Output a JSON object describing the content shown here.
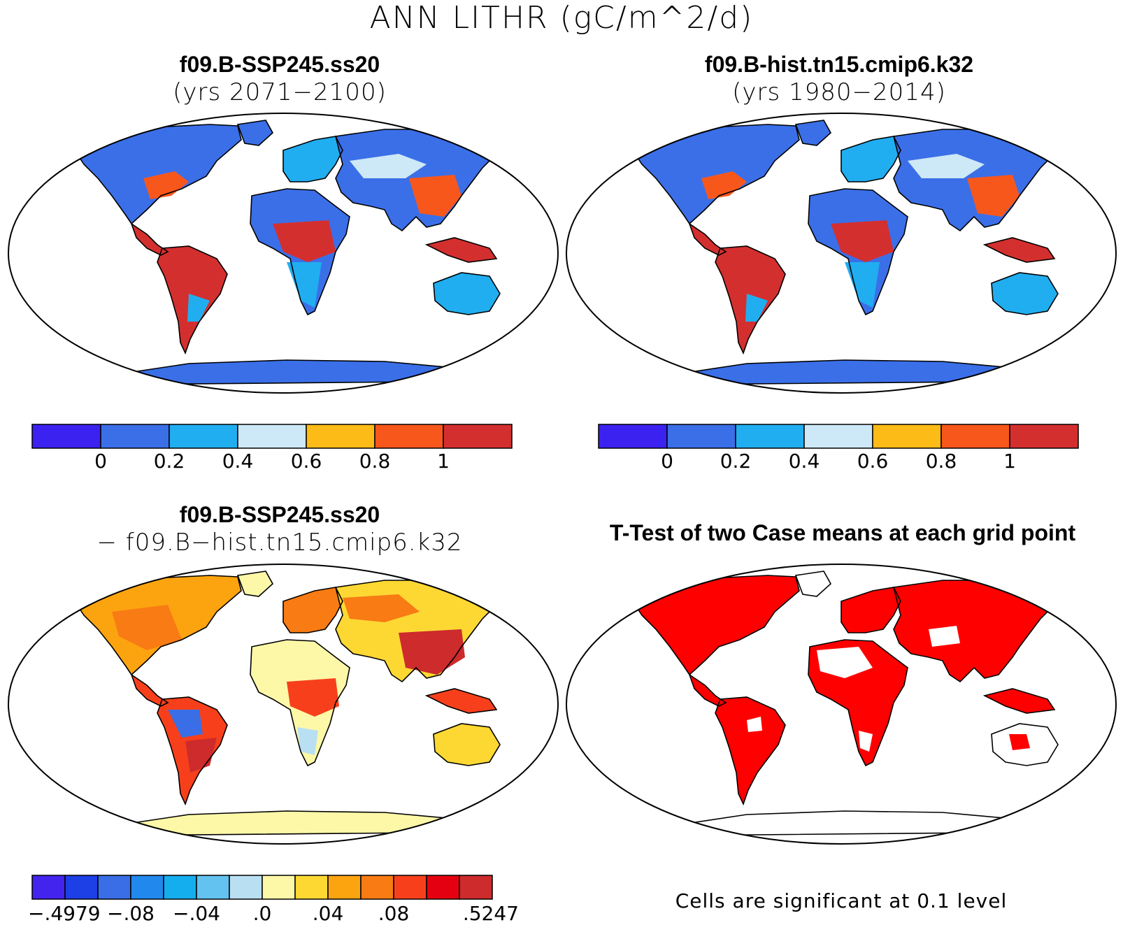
{
  "figure_title": "ANN LITHR (gC/m^2/d)",
  "panels": [
    {
      "title": "f09.B-SSP245.ss20",
      "subtitle": "(yrs 2071−2100)",
      "colorbar": {
        "colors": [
          "#3b22f0",
          "#3b6fe8",
          "#21aef0",
          "#cde8f6",
          "#fdbb17",
          "#f8571c",
          "#d42f2f"
        ],
        "labels": [
          "0",
          "0.2",
          "0.4",
          "0.6",
          "0.8",
          "1"
        ]
      }
    },
    {
      "title": "f09.B-hist.tn15.cmip6.k32",
      "subtitle": "(yrs 1980−2014)",
      "colorbar": {
        "colors": [
          "#3b22f0",
          "#3b6fe8",
          "#21aef0",
          "#cde8f6",
          "#fdbb17",
          "#f8571c",
          "#d42f2f"
        ],
        "labels": [
          "0",
          "0.2",
          "0.4",
          "0.6",
          "0.8",
          "1"
        ]
      }
    },
    {
      "title": "f09.B-SSP245.ss20",
      "subtitle": "− f09.B−hist.tn15.cmip6.k32",
      "colorbar": {
        "colors": [
          "#4224ee",
          "#1d3fe6",
          "#3a6ee6",
          "#2189ee",
          "#14aeee",
          "#63c2f0",
          "#b9dff3",
          "#fdf8a8",
          "#fdd833",
          "#fca40f",
          "#f87b14",
          "#f7401b",
          "#e40010",
          "#cd2b2c"
        ],
        "labels": [
          "−.4979",
          "−.08",
          "−.04",
          ".0",
          ".04",
          ".08",
          ".5247"
        ]
      }
    },
    {
      "title": "T-Test of two Case means at each grid point",
      "note": "Cells are significant at 0.1 level"
    }
  ],
  "colors": {
    "ocean": "#ffffff",
    "outline": "#000000",
    "significant": "#ff0000"
  }
}
